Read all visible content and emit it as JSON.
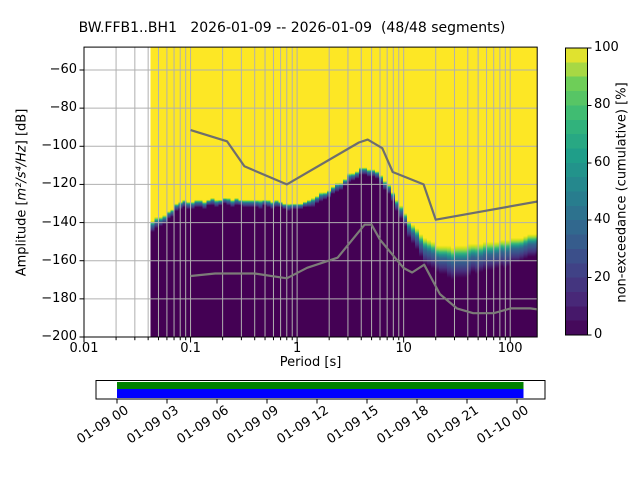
{
  "title": "BW.FFB1..BH1   2026-01-09 -- 2026-01-09  (48/48 segments)",
  "axes": {
    "ylabel_pre": "Amplitude [",
    "ylabel_math": "m²/s⁴/Hz",
    "ylabel_post": "] [dB]",
    "xlabel": "Period [s]",
    "x_tick_labels": [
      "0.01",
      "0.1",
      "1",
      "10",
      "100"
    ],
    "x_tick_values": [
      0.01,
      0.1,
      1,
      10,
      100
    ],
    "y_tick_labels": [
      "−60",
      "−80",
      "−100",
      "−120",
      "−140",
      "−160",
      "−180",
      "−200"
    ],
    "y_tick_values": [
      -60,
      -80,
      -100,
      -120,
      -140,
      -160,
      -180,
      -200
    ]
  },
  "colorbar": {
    "label": "non-exceedance (cumulative) [%]",
    "tick_labels": [
      "0",
      "20",
      "40",
      "60",
      "80",
      "100"
    ],
    "tick_values": [
      0,
      20,
      40,
      60,
      80,
      100
    ],
    "steps": 20,
    "colormap": "viridis",
    "colormap_anchors": [
      [
        0,
        "#440154"
      ],
      [
        0.125,
        "#482878"
      ],
      [
        0.25,
        "#3e4989"
      ],
      [
        0.375,
        "#31688e"
      ],
      [
        0.5,
        "#26828e"
      ],
      [
        0.625,
        "#1f9e89"
      ],
      [
        0.75,
        "#35b779"
      ],
      [
        0.875,
        "#6ece58"
      ],
      [
        1,
        "#fde725"
      ]
    ]
  },
  "chart_data": {
    "type": "heatmap",
    "title": "BW.FFB1..BH1   2026-01-09 -- 2026-01-09  (48/48 segments)",
    "x_axis": {
      "label": "Period [s]",
      "scale": "log",
      "range": [
        0.01,
        179
      ],
      "ticks": [
        0.01,
        0.1,
        1,
        10,
        100
      ]
    },
    "y_axis": {
      "label": "Amplitude [m2/s4/Hz] [dB]",
      "range": [
        -200,
        -48
      ],
      "ticks": [
        -60,
        -80,
        -100,
        -120,
        -140,
        -160,
        -180,
        -200
      ]
    },
    "z_axis": {
      "label": "non-exceedance (cumulative) [%]",
      "range": [
        0,
        100
      ]
    },
    "grid": true,
    "colors": {
      "top": "#fde725",
      "bottom": "#440154",
      "grid": "#b0b0b0",
      "nhnm": "#6e6e6e",
      "nlnm": "#7c7c78"
    },
    "band_gradient": [
      [
        0,
        "#fde725"
      ],
      [
        0.07,
        "#d8e219"
      ],
      [
        0.15,
        "#90d743"
      ],
      [
        0.24,
        "#35b779"
      ],
      [
        0.33,
        "#21918c"
      ],
      [
        0.45,
        "#31688e"
      ],
      [
        0.6,
        "#3b528b"
      ],
      [
        0.78,
        "#46327e"
      ],
      [
        1,
        "#440154"
      ]
    ],
    "distribution_envelope": {
      "comment": "max_db = amplitude above which non-exceedance is 100% (yellow); min_db = amplitude below which it is 0% (dark purple)",
      "period_start": 0.042,
      "bins_per_octave": 8,
      "periods": [
        0.042,
        0.048,
        0.055,
        0.062,
        0.068,
        0.075,
        0.09,
        0.12,
        0.18,
        0.26,
        0.35,
        0.5,
        0.65,
        0.8,
        1.0,
        1.3,
        1.65,
        2.0,
        2.5,
        3.1,
        3.7,
        4.4,
        5.2,
        6.2,
        7.5,
        9.0,
        11,
        13.5,
        16.5,
        20,
        26,
        33,
        45,
        60,
        80,
        110,
        150,
        179
      ],
      "max_db": [
        -139,
        -137.5,
        -136.5,
        -135,
        -133,
        -129.5,
        -128.3,
        -128.0,
        -127.6,
        -127.8,
        -128.0,
        -127.7,
        -128.3,
        -130.6,
        -130.3,
        -128.0,
        -124.5,
        -122.0,
        -118.8,
        -115.0,
        -112.3,
        -110.6,
        -111.8,
        -114.5,
        -121.0,
        -129.5,
        -138.5,
        -144.5,
        -148.5,
        -151.0,
        -152.0,
        -152.3,
        -151.5,
        -150.5,
        -149.3,
        -148.0,
        -146.6,
        -146.0
      ],
      "min_db": [
        -145,
        -143.5,
        -141.5,
        -139.5,
        -137.5,
        -133.5,
        -132.0,
        -131.6,
        -131.3,
        -131.6,
        -131.8,
        -131.5,
        -132.2,
        -133.8,
        -133.5,
        -131.8,
        -128.8,
        -126.3,
        -123.2,
        -119.5,
        -116.8,
        -114.8,
        -116.2,
        -119.0,
        -126.5,
        -135.5,
        -147.0,
        -156.0,
        -163.0,
        -164.5,
        -168.0,
        -170.0,
        -167.5,
        -165.5,
        -163.5,
        -161.0,
        -158.5,
        -157.5
      ]
    },
    "noise_models": {
      "high": [
        [
          0.1,
          -91.5
        ],
        [
          0.22,
          -97.4
        ],
        [
          0.32,
          -110.5
        ],
        [
          0.8,
          -120
        ],
        [
          3.8,
          -98
        ],
        [
          4.6,
          -96.5
        ],
        [
          6.3,
          -101
        ],
        [
          7.9,
          -113.5
        ],
        [
          15.4,
          -120
        ],
        [
          20,
          -138.5
        ],
        [
          354.8,
          -126
        ]
      ],
      "low": [
        [
          0.1,
          -168
        ],
        [
          0.17,
          -166.7
        ],
        [
          0.4,
          -166.7
        ],
        [
          0.8,
          -169.2
        ],
        [
          1.24,
          -163.7
        ],
        [
          2.4,
          -158.4
        ],
        [
          4.3,
          -141.1
        ],
        [
          5,
          -141.1
        ],
        [
          6,
          -149
        ],
        [
          10,
          -163.8
        ],
        [
          12,
          -166.2
        ],
        [
          15.6,
          -162.1
        ],
        [
          21.9,
          -177.5
        ],
        [
          31.6,
          -185
        ],
        [
          45,
          -187.5
        ],
        [
          70,
          -187.5
        ],
        [
          101,
          -185
        ],
        [
          154,
          -185
        ],
        [
          328,
          -187.5
        ]
      ]
    }
  },
  "coverage": {
    "tick_labels": [
      "01-09 00",
      "01-09 03",
      "01-09 06",
      "01-09 09",
      "01-09 12",
      "01-09 15",
      "01-09 18",
      "01-09 21",
      "01-10 00"
    ],
    "data_color": "#008000",
    "psd_color": "#0000ff"
  }
}
